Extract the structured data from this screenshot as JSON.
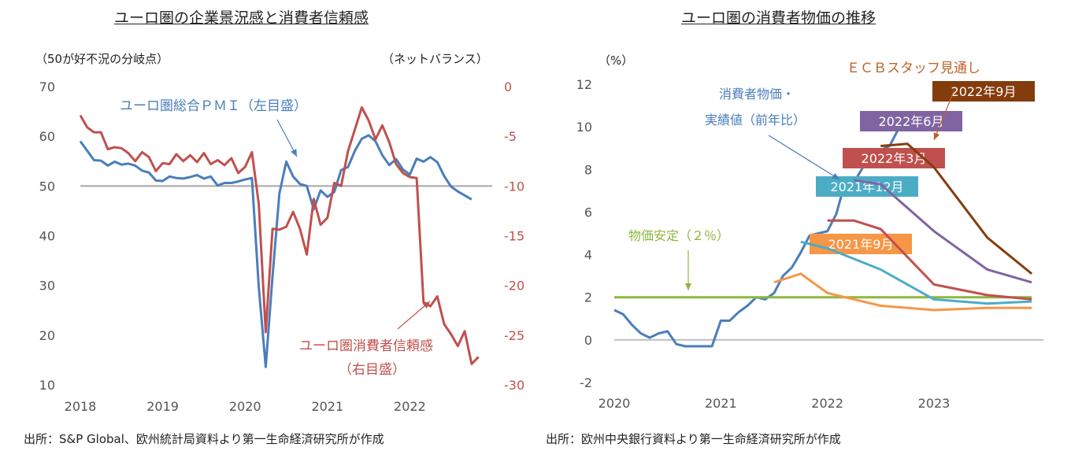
{
  "chart_data": [
    {
      "type": "line",
      "title": "ユーロ圏の企業景況感と消費者信頼感",
      "ylabel_left": "（50が好不況の分岐点）",
      "ylabel_right": "（ネットバランス）",
      "source": "出所：S&P Global、欧州統計局資料より第一生命経済研究所が作成",
      "x_ticks": [
        "2018",
        "2019",
        "2020",
        "2021",
        "2022"
      ],
      "ylim_left": [
        10,
        70
      ],
      "y_ticks_left": [
        "70",
        "60",
        "50",
        "40",
        "30",
        "20",
        "10"
      ],
      "ylim_right": [
        -30,
        0
      ],
      "y_ticks_right": [
        "0",
        "-5",
        "-10",
        "-15",
        "-20",
        "-25",
        "-30"
      ],
      "reference_line": 50,
      "colors": {
        "pmi": "#4a7ebb",
        "confidence": "#c0504d",
        "reference": "#a6a6a6"
      },
      "annotations": [
        {
          "id": "pmi",
          "text": "ユーロ圏総合ＰＭＩ（左目盛）"
        },
        {
          "id": "conf_1",
          "text": "ユーロ圏消費者信頼感"
        },
        {
          "id": "conf_2",
          "text": "（右目盛）"
        }
      ],
      "series": [
        {
          "name": "ユーロ圏総合ＰＭＩ（左目盛）",
          "axis": "left",
          "x_start": "2018-01",
          "values": [
            59.0,
            57.1,
            55.2,
            55.1,
            54.1,
            54.9,
            54.3,
            54.5,
            54.1,
            53.1,
            52.7,
            51.1,
            51.0,
            51.9,
            51.6,
            51.5,
            51.8,
            52.2,
            51.5,
            51.9,
            50.1,
            50.6,
            50.6,
            50.9,
            51.3,
            51.6,
            29.7,
            13.6,
            31.9,
            48.5,
            54.9,
            51.9,
            50.4,
            50.0,
            45.3,
            49.1,
            47.8,
            48.8,
            53.2,
            53.8,
            57.1,
            59.5,
            60.2,
            59.0,
            56.2,
            54.2,
            55.4,
            53.3,
            52.3,
            55.5,
            54.9,
            55.8,
            54.8,
            52.0,
            49.9,
            48.9,
            48.1,
            47.3
          ]
        },
        {
          "name": "ユーロ圏消費者信頼感（右目盛）",
          "axis": "right",
          "x_start": "2018-01",
          "values": [
            -2.9,
            -4.1,
            -4.6,
            -4.6,
            -6.3,
            -6.1,
            -6.2,
            -6.7,
            -7.5,
            -6.6,
            -7.1,
            -8.5,
            -7.7,
            -7.8,
            -6.8,
            -7.5,
            -6.9,
            -7.6,
            -6.7,
            -7.8,
            -7.4,
            -7.9,
            -7.2,
            -8.7,
            -8.1,
            -6.6,
            -11.8,
            -24.7,
            -14.3,
            -14.4,
            -14.1,
            -12.6,
            -14.3,
            -16.9,
            -11.3,
            -13.9,
            -13.2,
            -9.7,
            -10.0,
            -6.5,
            -4.3,
            -2.1,
            -3.4,
            -5.3,
            -3.9,
            -5.6,
            -7.8,
            -8.7,
            -9.1,
            -9.2,
            -21.7,
            -22.1,
            -21.1,
            -23.9,
            -24.9,
            -26.1,
            -24.6,
            -27.9,
            -27.2
          ]
        }
      ]
    },
    {
      "type": "line",
      "title": "ユーロ圏の消費者物価の推移",
      "ylabel": "（%）",
      "source": "出所：欧州中央銀行資料より第一生命経済研究所が作成",
      "x_ticks": [
        "2020",
        "2021",
        "2022",
        "2023"
      ],
      "ylim": [
        -2,
        12
      ],
      "y_ticks": [
        "12",
        "10",
        "8",
        "6",
        "4",
        "2",
        "0",
        "-2"
      ],
      "reference_line": 2,
      "colors": {
        "actual": "#4a7ebb",
        "price_stability": "#8db73e",
        "zero": "#bfbfbf"
      },
      "annotations": [
        {
          "id": "ecb",
          "text": "ＥＣＢスタッフ見通し",
          "color": "#c0622a"
        },
        {
          "id": "cpi_1",
          "text": "消費者物価・",
          "color": "#4a7ebb"
        },
        {
          "id": "cpi_2",
          "text": "実績値（前年比）",
          "color": "#4a7ebb"
        },
        {
          "id": "target",
          "text": "物価安定（２％）",
          "color": "#8db73e"
        }
      ],
      "series": [
        {
          "name": "消費者物価・実績値（前年比）",
          "x_start": "2020-01",
          "step": "month",
          "values": [
            1.4,
            1.2,
            0.7,
            0.3,
            0.1,
            0.3,
            0.4,
            -0.2,
            -0.3,
            -0.3,
            -0.3,
            -0.3,
            0.9,
            0.9,
            1.3,
            1.6,
            2.0,
            1.9,
            2.2,
            3.0,
            3.4,
            4.1,
            4.9,
            5.0,
            5.1,
            5.9,
            7.4,
            7.4,
            8.1,
            8.6,
            8.9,
            9.1,
            9.9,
            10.6
          ]
        },
        {
          "name": "物価安定（２％）",
          "points": [
            [
              "2020-01",
              2.0
            ],
            [
              "2023-12",
              2.0
            ]
          ]
        },
        {
          "name": "2021年9月",
          "color": "#f79646",
          "points": [
            [
              "2021-07",
              2.7
            ],
            [
              "2021-10",
              3.1
            ],
            [
              "2022-01",
              2.2
            ],
            [
              "2022-07",
              1.6
            ],
            [
              "2023-01",
              1.4
            ],
            [
              "2023-07",
              1.5
            ],
            [
              "2023-12",
              1.5
            ]
          ]
        },
        {
          "name": "2021年12月",
          "color": "#4bacc6",
          "points": [
            [
              "2021-10",
              4.6
            ],
            [
              "2022-01",
              4.3
            ],
            [
              "2022-07",
              3.3
            ],
            [
              "2023-01",
              1.9
            ],
            [
              "2023-07",
              1.7
            ],
            [
              "2023-12",
              1.8
            ]
          ]
        },
        {
          "name": "2022年3月",
          "color": "#c0504d",
          "points": [
            [
              "2022-01",
              5.6
            ],
            [
              "2022-04",
              5.6
            ],
            [
              "2022-07",
              5.2
            ],
            [
              "2023-01",
              2.6
            ],
            [
              "2023-07",
              2.1
            ],
            [
              "2023-12",
              1.9
            ]
          ]
        },
        {
          "name": "2022年6月",
          "color": "#8064a2",
          "points": [
            [
              "2022-04",
              7.5
            ],
            [
              "2022-07",
              7.3
            ],
            [
              "2023-01",
              5.1
            ],
            [
              "2023-07",
              3.3
            ],
            [
              "2023-12",
              2.7
            ]
          ]
        },
        {
          "name": "2022年9月",
          "color": "#843c0c",
          "points": [
            [
              "2022-07",
              9.1
            ],
            [
              "2022-10",
              9.2
            ],
            [
              "2023-01",
              8.1
            ],
            [
              "2023-07",
              4.8
            ],
            [
              "2023-12",
              3.1
            ]
          ]
        }
      ]
    }
  ]
}
